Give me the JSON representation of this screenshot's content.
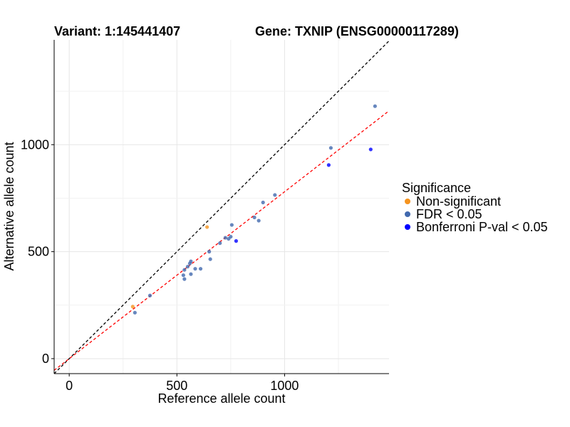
{
  "chart_data": {
    "type": "scatter",
    "title_left": "Variant: 1:145441407",
    "title_right": "Gene: TXNIP (ENSG00000117289)",
    "xlabel": "Reference allele count",
    "ylabel": "Alternative allele count",
    "xlim": [
      -70,
      1485
    ],
    "ylim": [
      -70,
      1490
    ],
    "xticks": [
      0,
      500,
      1000
    ],
    "yticks": [
      0,
      500,
      1000
    ],
    "grid": true,
    "legend": {
      "title": "Significance",
      "position": "right",
      "entries": [
        {
          "label": "Non-significant",
          "color": "#F5931E"
        },
        {
          "label": "FDR < 0.05",
          "color": "#4169AE"
        },
        {
          "label": "Bonferroni P-val < 0.05",
          "color": "#0000FF"
        }
      ]
    },
    "reference_lines": [
      {
        "name": "identity",
        "slope": 1.0,
        "intercept": 0,
        "color": "#000000",
        "dash": true
      },
      {
        "name": "fit",
        "slope": 0.78,
        "intercept": 0,
        "color": "#FF0000",
        "dash": true
      }
    ],
    "series": [
      {
        "name": "Non-significant",
        "color": "#F5931E",
        "points": [
          [
            640,
            615
          ],
          [
            295,
            243
          ]
        ]
      },
      {
        "name": "FDR < 0.05",
        "color": "#4169AE",
        "points": [
          [
            1420,
            1180
          ],
          [
            1215,
            985
          ],
          [
            955,
            765
          ],
          [
            900,
            730
          ],
          [
            860,
            660
          ],
          [
            880,
            645
          ],
          [
            755,
            625
          ],
          [
            750,
            570
          ],
          [
            740,
            560
          ],
          [
            725,
            565
          ],
          [
            700,
            540
          ],
          [
            650,
            500
          ],
          [
            655,
            465
          ],
          [
            610,
            420
          ],
          [
            585,
            420
          ],
          [
            565,
            455
          ],
          [
            560,
            445
          ],
          [
            550,
            430
          ],
          [
            565,
            395
          ],
          [
            530,
            390
          ],
          [
            535,
            415
          ],
          [
            535,
            372
          ],
          [
            375,
            295
          ],
          [
            305,
            215
          ]
        ]
      },
      {
        "name": "Bonferroni P-val < 0.05",
        "color": "#0000FF",
        "points": [
          [
            1400,
            978
          ],
          [
            1205,
            905
          ],
          [
            775,
            550
          ]
        ]
      }
    ]
  }
}
